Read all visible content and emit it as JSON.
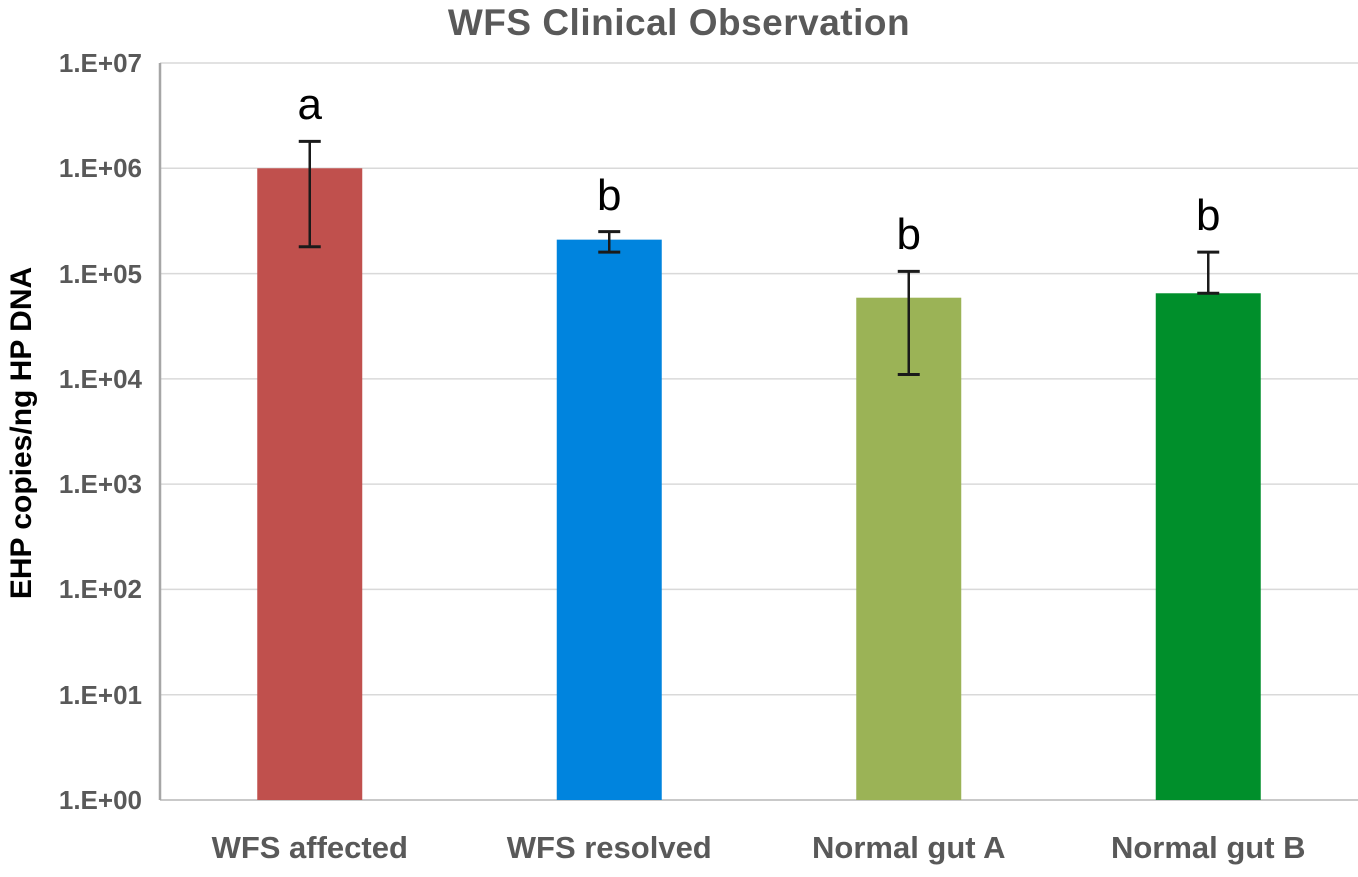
{
  "chart_data": {
    "type": "bar",
    "title": "WFS Clinical Observation",
    "xlabel": "",
    "ylabel": "EHP copies/ng HP DNA",
    "yscale": "log",
    "ylim": [
      1,
      10000000
    ],
    "grid": true,
    "legend": false,
    "categories": [
      "WFS affected",
      "WFS resolved",
      "Normal gut A",
      "Normal gut B"
    ],
    "values": [
      1000000,
      210000,
      59000,
      65000
    ],
    "error_low": [
      180000,
      160000,
      11000,
      65000
    ],
    "error_high": [
      1800000,
      250000,
      105000,
      160000
    ],
    "sig_letters": [
      "a",
      "b",
      "b",
      "b"
    ],
    "bar_colors": [
      "#c0504d",
      "#0084de",
      "#9bb356",
      "#008f2b"
    ],
    "ytick_labels": [
      "1.E+00",
      "1.E+01",
      "1.E+02",
      "1.E+03",
      "1.E+04",
      "1.E+05",
      "1.E+06",
      "1.E+07"
    ]
  },
  "colors": {
    "title_text": "#595959",
    "tick_text": "#595959",
    "axis_title_text": "#000000",
    "gridline": "#d9d9d9",
    "baseline": "#c9c9c9",
    "axis_line": "#a6a6a6",
    "error_bar": "#1a1a1a",
    "background": "#ffffff"
  }
}
